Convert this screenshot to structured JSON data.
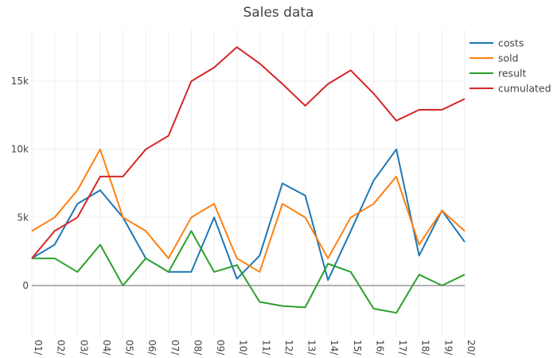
{
  "chart_data": {
    "type": "line",
    "title": "Sales data",
    "categories": [
      "01/",
      "02/",
      "03/",
      "04/",
      "05/",
      "06/",
      "07/",
      "08/",
      "09/",
      "10/",
      "11/",
      "12/",
      "13/",
      "14/",
      "15/",
      "16/",
      "17/",
      "18/",
      "19/",
      "20/"
    ],
    "ylim": [
      -3800,
      18800
    ],
    "yticks": [
      0,
      5000,
      10000,
      15000
    ],
    "ytick_labels": [
      "0",
      "5k",
      "10k",
      "15k"
    ],
    "grid": true,
    "legend_position": "top-right",
    "series": [
      {
        "name": "costs",
        "color": "#1f77b4",
        "values": [
          2000,
          3000,
          6000,
          7000,
          5000,
          2000,
          1000,
          1000,
          5000,
          500,
          2200,
          7500,
          6600,
          400,
          4000,
          7700,
          10000,
          2200,
          5500,
          3200
        ]
      },
      {
        "name": "sold",
        "color": "#ff7f0e",
        "values": [
          4000,
          5000,
          7000,
          10000,
          5000,
          4000,
          2000,
          5000,
          6000,
          2000,
          1000,
          6000,
          5000,
          2000,
          5000,
          6000,
          8000,
          3000,
          5500,
          4000
        ]
      },
      {
        "name": "result",
        "color": "#2ca02c",
        "values": [
          2000,
          2000,
          1000,
          3000,
          0,
          2000,
          1000,
          4000,
          1000,
          1500,
          -1200,
          -1500,
          -1600,
          1600,
          1000,
          -1700,
          -2000,
          800,
          0,
          800
        ]
      },
      {
        "name": "cumulated",
        "color": "#d62728",
        "values": [
          2000,
          4000,
          5000,
          8000,
          8000,
          10000,
          11000,
          15000,
          16000,
          17500,
          16300,
          14800,
          13200,
          14800,
          15800,
          14100,
          12100,
          12900,
          12900,
          13700
        ]
      }
    ]
  }
}
